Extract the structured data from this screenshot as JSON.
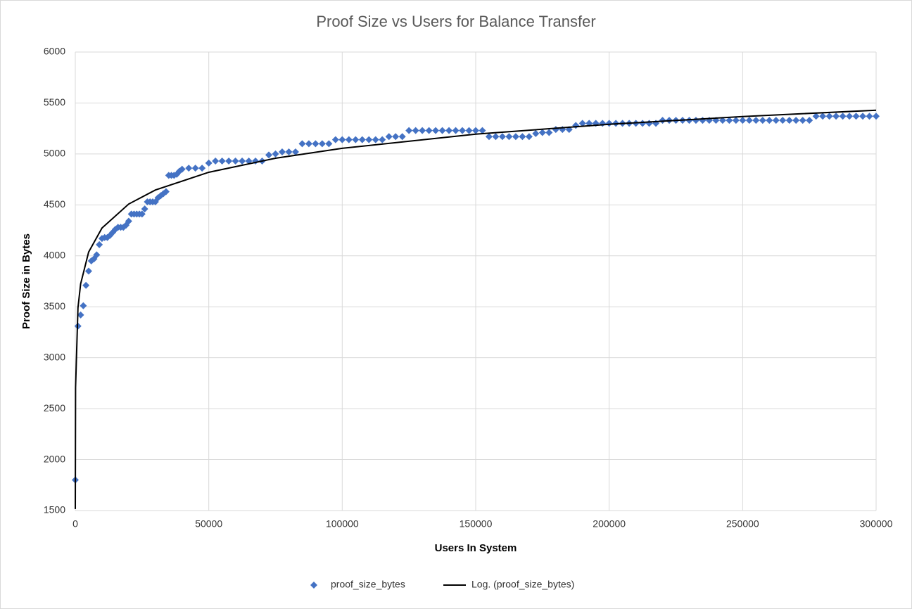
{
  "chart_data": {
    "type": "scatter",
    "title": "Proof Size vs Users for Balance Transfer",
    "xlabel": "Users In System",
    "ylabel": "Proof Size in Bytes",
    "xlim": [
      0,
      300000
    ],
    "xticks": [
      0,
      50000,
      100000,
      150000,
      200000,
      250000,
      300000
    ],
    "ylim": [
      1500,
      6000
    ],
    "yticks": [
      1500,
      2000,
      2500,
      3000,
      3500,
      4000,
      4500,
      5000,
      5500,
      6000
    ],
    "grid": true,
    "legend": "bottom",
    "series": [
      {
        "name": "proof_size_bytes",
        "color": "#4472c4",
        "kind": "marker",
        "x": [
          0,
          1000,
          2000,
          3000,
          4000,
          5000,
          6000,
          7000,
          8000,
          9000,
          10000,
          11000,
          12000,
          13000,
          14000,
          15000,
          16000,
          17000,
          18000,
          19000,
          20000,
          21000,
          22000,
          23000,
          24000,
          25000,
          26000,
          27000,
          28000,
          29000,
          30000,
          31000,
          32000,
          33000,
          34000,
          35000,
          36000,
          37000,
          38000,
          39000,
          40000,
          42500,
          45000,
          47500,
          50000,
          52500,
          55000,
          57500,
          60000,
          62500,
          65000,
          67500,
          70000,
          72500,
          75000,
          77500,
          80000,
          82500,
          85000,
          87500,
          90000,
          92500,
          95000,
          97500,
          100000,
          102500,
          105000,
          107500,
          110000,
          112500,
          115000,
          117500,
          120000,
          122500,
          125000,
          127500,
          130000,
          132500,
          135000,
          137500,
          140000,
          142500,
          145000,
          147500,
          150000,
          152500,
          155000,
          157500,
          160000,
          162500,
          165000,
          167500,
          170000,
          172500,
          175000,
          177500,
          180000,
          182500,
          185000,
          187500,
          190000,
          192500,
          195000,
          197500,
          200000,
          202500,
          205000,
          207500,
          210000,
          212500,
          215000,
          217500,
          220000,
          222500,
          225000,
          227500,
          230000,
          232500,
          235000,
          237500,
          240000,
          242500,
          245000,
          247500,
          250000,
          252500,
          255000,
          257500,
          260000,
          262500,
          265000,
          267500,
          270000,
          272500,
          275000,
          277500,
          280000,
          282500,
          285000,
          287500,
          290000,
          292500,
          295000,
          297500,
          300000
        ],
        "values": [
          1800,
          3310,
          3420,
          3510,
          3710,
          3850,
          3950,
          3970,
          4010,
          4110,
          4170,
          4180,
          4180,
          4200,
          4230,
          4260,
          4280,
          4280,
          4280,
          4300,
          4340,
          4410,
          4410,
          4410,
          4410,
          4410,
          4460,
          4530,
          4530,
          4530,
          4530,
          4570,
          4590,
          4610,
          4630,
          4790,
          4790,
          4790,
          4800,
          4830,
          4850,
          4860,
          4860,
          4860,
          4910,
          4930,
          4930,
          4930,
          4930,
          4930,
          4930,
          4930,
          4930,
          4990,
          5000,
          5020,
          5020,
          5020,
          5100,
          5100,
          5100,
          5100,
          5100,
          5140,
          5140,
          5140,
          5140,
          5140,
          5140,
          5140,
          5140,
          5170,
          5170,
          5170,
          5230,
          5230,
          5230,
          5230,
          5230,
          5230,
          5230,
          5230,
          5230,
          5230,
          5230,
          5230,
          5170,
          5170,
          5170,
          5170,
          5170,
          5170,
          5170,
          5200,
          5210,
          5210,
          5240,
          5240,
          5240,
          5280,
          5300,
          5300,
          5300,
          5300,
          5300,
          5300,
          5300,
          5300,
          5300,
          5300,
          5300,
          5300,
          5330,
          5330,
          5330,
          5330,
          5330,
          5330,
          5330,
          5330,
          5330,
          5330,
          5330,
          5330,
          5330,
          5330,
          5330,
          5330,
          5330,
          5330,
          5330,
          5330,
          5330,
          5330,
          5330,
          5370,
          5370,
          5370,
          5370,
          5370,
          5370,
          5370,
          5370,
          5370,
          5370
        ]
      },
      {
        "name": "Log. (proof_size_bytes)",
        "color": "#000000",
        "kind": "line",
        "x": [
          3,
          100,
          1000,
          2000,
          5000,
          10000,
          20000,
          30000,
          50000,
          75000,
          100000,
          150000,
          200000,
          250000,
          300000
        ],
        "values": [
          1515,
          2707,
          3490,
          3725,
          4037,
          4273,
          4508,
          4646,
          4820,
          4958,
          5055,
          5194,
          5291,
          5367,
          5429
        ]
      }
    ]
  }
}
